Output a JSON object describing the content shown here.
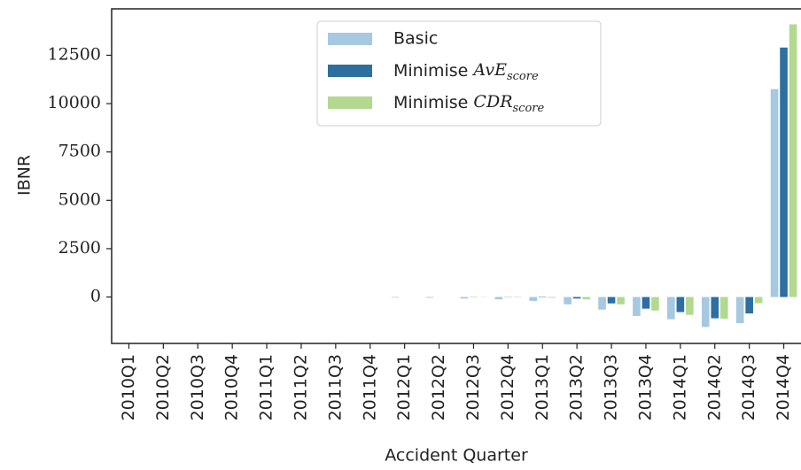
{
  "chart_data": {
    "type": "bar",
    "x_label": "Accident Quarter",
    "y_label": "IBNR",
    "categories": [
      "2010Q1",
      "2010Q2",
      "2010Q3",
      "2010Q4",
      "2011Q1",
      "2011Q2",
      "2011Q3",
      "2011Q4",
      "2012Q1",
      "2012Q2",
      "2012Q3",
      "2012Q4",
      "2013Q1",
      "2013Q2",
      "2013Q3",
      "2013Q4",
      "2014Q1",
      "2014Q2",
      "2014Q3",
      "2014Q4"
    ],
    "series": [
      {
        "name": "Basic",
        "color": "#a6c8e0",
        "values": [
          0,
          0,
          0,
          0,
          0,
          0,
          0,
          0,
          -30,
          -40,
          -80,
          -120,
          -200,
          -380,
          -650,
          -980,
          -1150,
          -1550,
          -1350,
          10750
        ]
      },
      {
        "name": "Minimise AvE_score",
        "color": "#2c6fa0",
        "values": [
          0,
          0,
          0,
          0,
          0,
          0,
          0,
          0,
          0,
          0,
          -10,
          -10,
          -20,
          -80,
          -330,
          -600,
          -780,
          -1100,
          -850,
          12900
        ]
      },
      {
        "name": "Minimise CDR_score",
        "color": "#b2d98f",
        "values": [
          0,
          0,
          0,
          0,
          0,
          0,
          0,
          0,
          0,
          0,
          -10,
          -20,
          -40,
          -120,
          -380,
          -700,
          -920,
          -1120,
          -320,
          14100
        ]
      }
    ],
    "ylim": [
      -2400,
      14900
    ],
    "yticks": [
      0,
      2500,
      5000,
      7500,
      10000,
      12500
    ],
    "legend": "upper center"
  }
}
